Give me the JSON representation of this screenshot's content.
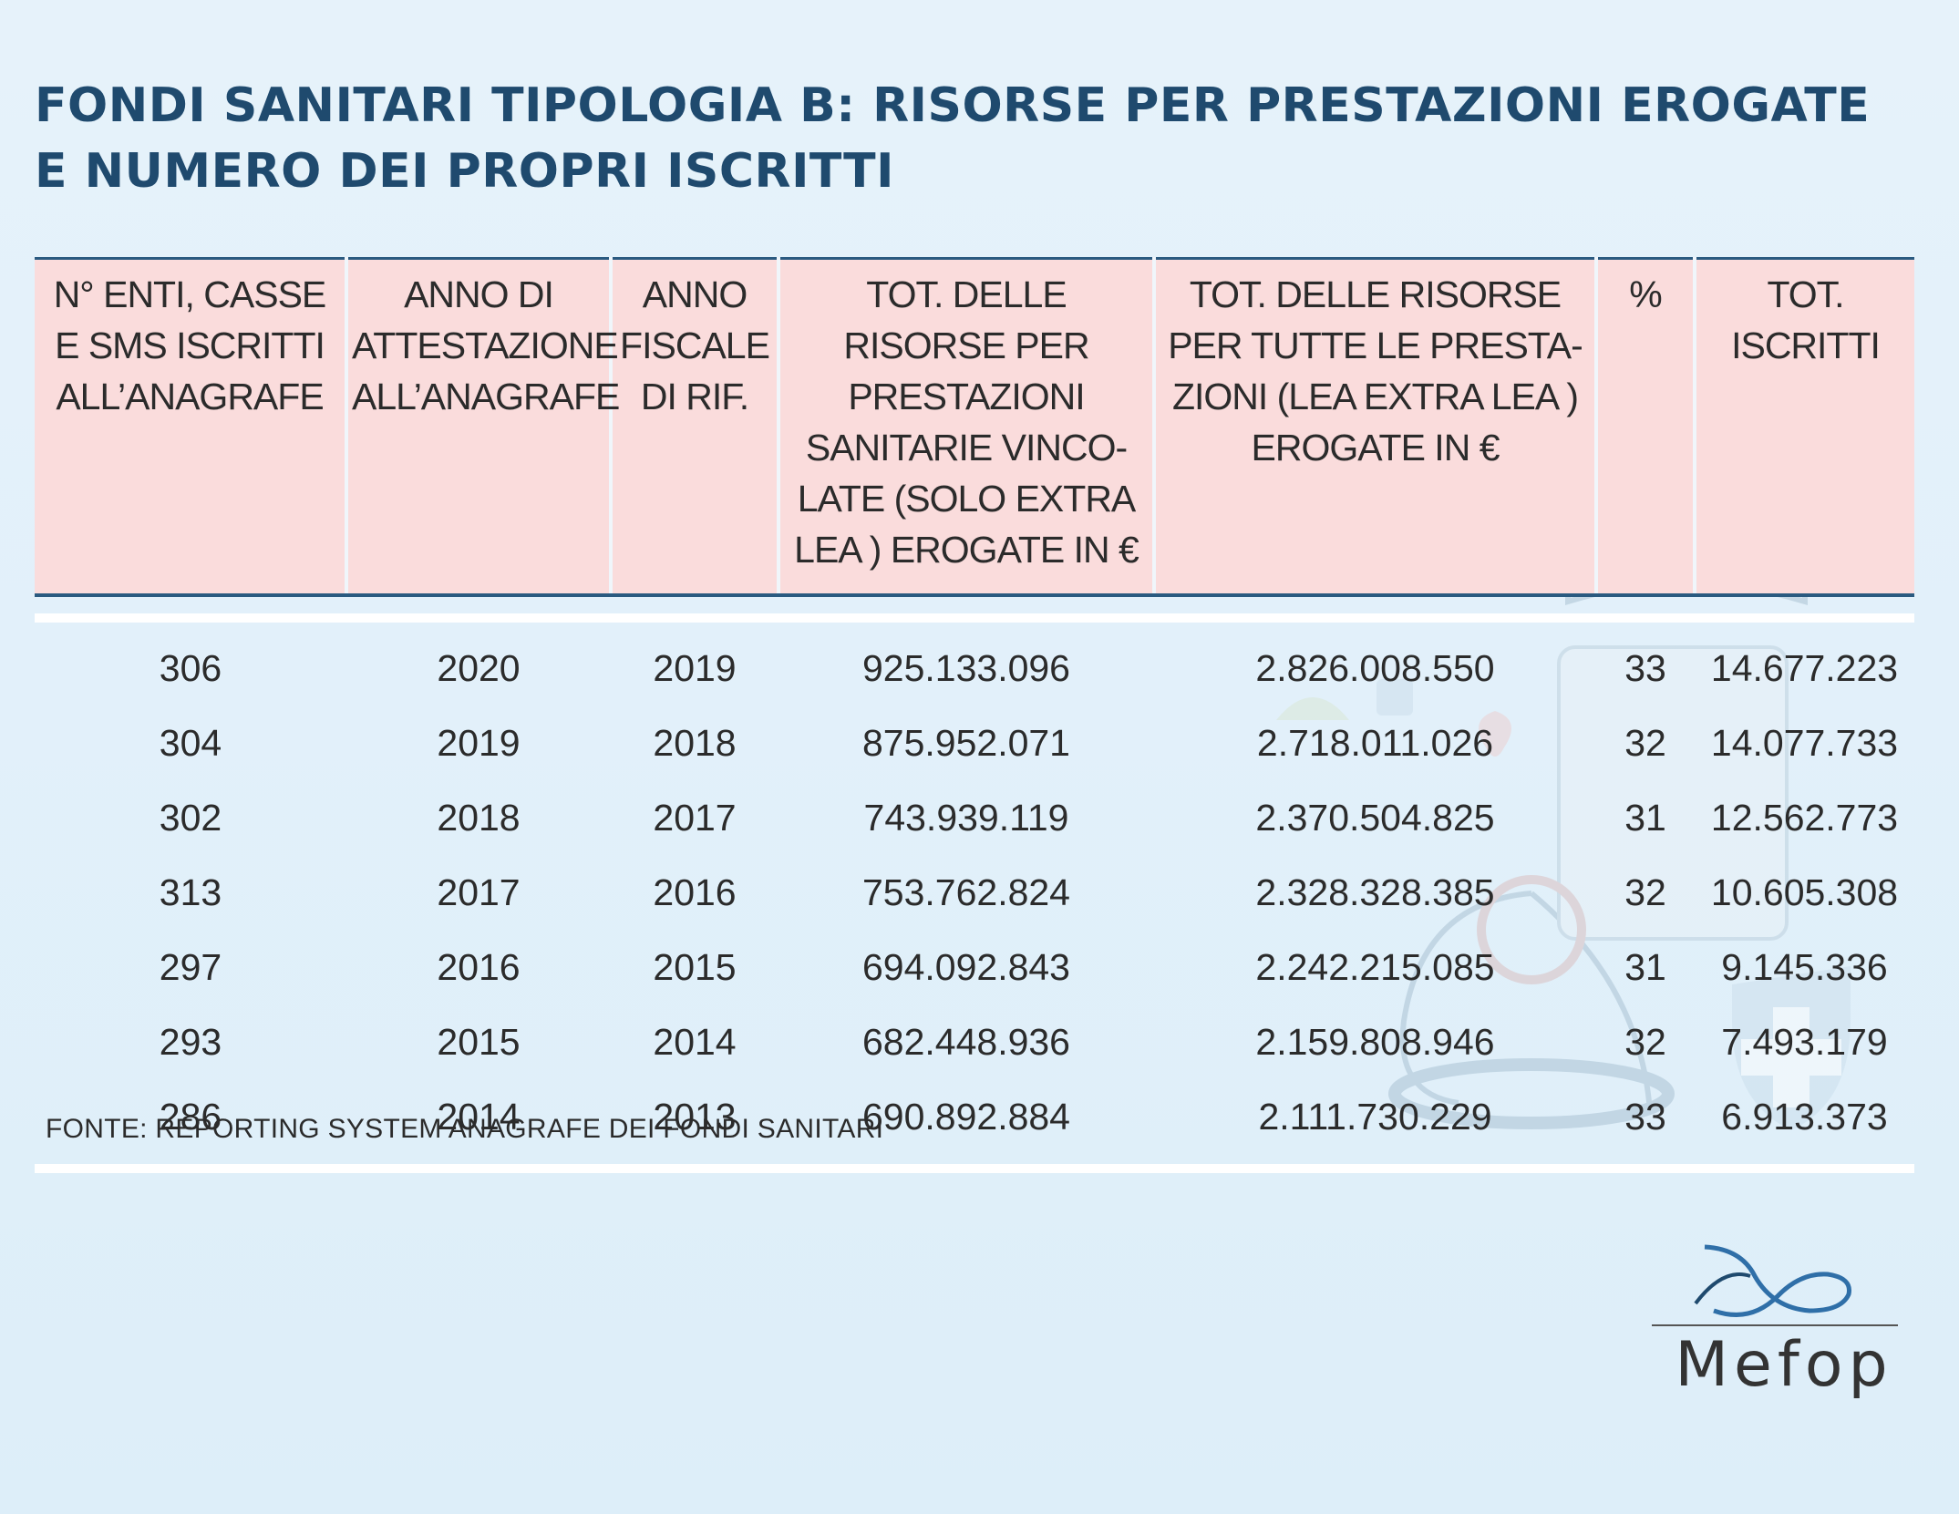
{
  "title": "FONDI SANITARI TIPOLOGIA B: RISORSE PER PRESTAZIONI EROGATE E NUMERO DEI PROPRI ISCRITTI",
  "table": {
    "headers": [
      "N° ENTI, CASSE E SMS ISCRITTI ALL’ANAGRAFE",
      "ANNO DI ATTESTAZIONE ALL’ANAGRAFE",
      "ANNO FISCALE DI RIF.",
      "TOT. DELLE RISORSE PER PRESTAZIONI SANITARIE VINCO-LATE (SOLO EXTRA LEA ) EROGATE IN €",
      "TOT. DELLE RISORSE PER TUTTE LE PRESTA-ZIONI (LEA EXTRA LEA ) EROGATE IN €",
      "%",
      "TOT. ISCRITTI"
    ],
    "rows": [
      [
        "306",
        "2020",
        "2019",
        "925.133.096",
        "2.826.008.550",
        "33",
        "14.677.223"
      ],
      [
        "304",
        "2019",
        "2018",
        "875.952.071",
        "2.718.011.026",
        "32",
        "14.077.733"
      ],
      [
        "302",
        "2018",
        "2017",
        "743.939.119",
        "2.370.504.825",
        "31",
        "12.562.773"
      ],
      [
        "313",
        "2017",
        "2016",
        "753.762.824",
        "2.328.328.385",
        "32",
        "10.605.308"
      ],
      [
        "297",
        "2016",
        "2015",
        "694.092.843",
        "2.242.215.085",
        "31",
        "9.145.336"
      ],
      [
        "293",
        "2015",
        "2014",
        "682.448.936",
        "2.159.808.946",
        "32",
        "7.493.179"
      ],
      [
        "286",
        "2014",
        "2013",
        "690.892.884",
        "2.111.730.229",
        "33",
        "6.913.373"
      ]
    ]
  },
  "source": "FONTE: REPORTING SYSTEM ANAGRAFE  DEI FONDI SANITARI",
  "logo": {
    "name": "Mefop",
    "icon": "mefop-logo-icon"
  },
  "colors": {
    "title": "#1f4a6e",
    "header_bg": "#fadcdc",
    "rule": "#2a5a80",
    "background": "#e1eff9"
  }
}
